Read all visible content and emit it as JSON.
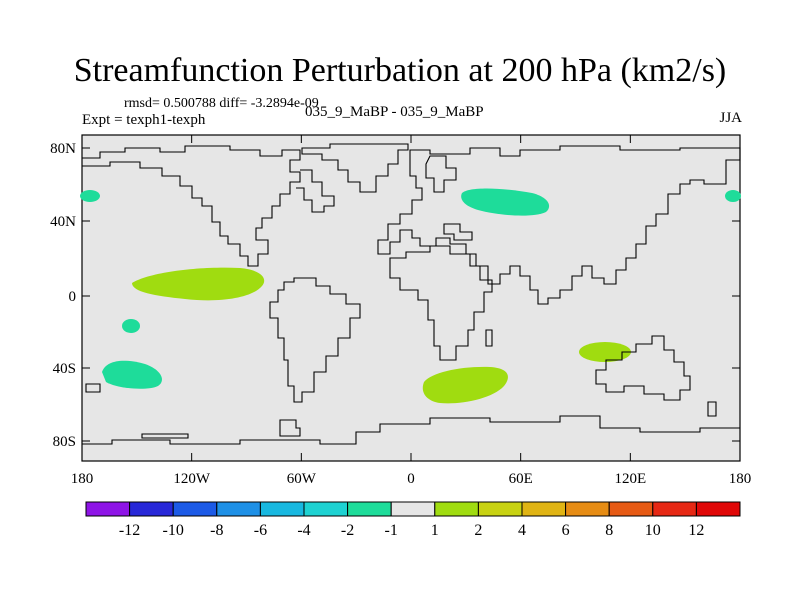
{
  "title": "Streamfunction Perturbation at 200 hPa (km2/s)",
  "stats": "rmsd= 0.500788  diff= -3.2894e-09",
  "expt": "Expt = texph1-texph",
  "case": "035_9_MaBP - 035_9_MaBP",
  "season": "JJA",
  "lon_labels": [
    "180",
    "120W",
    "60W",
    "0",
    "60E",
    "120E",
    "180"
  ],
  "lat_labels": [
    "80N",
    "40N",
    "0",
    "40S",
    "80S"
  ],
  "colorbar": {
    "labels": [
      "-12",
      "-10",
      "-8",
      "-6",
      "-4",
      "-2",
      "-1",
      "1",
      "2",
      "4",
      "6",
      "8",
      "10",
      "12"
    ],
    "colors": [
      "#8e14e6",
      "#2828d8",
      "#1c5ae6",
      "#1e90e6",
      "#18b8e0",
      "#1ed2d2",
      "#1edc9a",
      "#e6e6e6",
      "#a0dc10",
      "#c8d212",
      "#e0b414",
      "#e68c14",
      "#e65a14",
      "#e62814",
      "#e00808"
    ]
  },
  "colors": {
    "background": "#e6e6e6",
    "positive_2": "#a0dc10",
    "negative_2": "#1edc9a",
    "coast": "#000000"
  },
  "anomalies": [
    {
      "name": "pos-tropical-east-pacific",
      "sign": "+",
      "level": "1 to 2"
    },
    {
      "name": "neg-small-south-pacific",
      "sign": "-",
      "level": "-2 to -1"
    },
    {
      "name": "neg-south-pacific-40s",
      "sign": "-",
      "level": "-2 to -1"
    },
    {
      "name": "neg-north-pacific-edge",
      "sign": "-",
      "level": "-2 to -1"
    },
    {
      "name": "neg-siberia",
      "sign": "-",
      "level": "-2 to -1"
    },
    {
      "name": "pos-south-indian-ocean",
      "sign": "+",
      "level": "1 to 2"
    },
    {
      "name": "pos-west-australia",
      "sign": "+",
      "level": "1 to 2"
    }
  ]
}
